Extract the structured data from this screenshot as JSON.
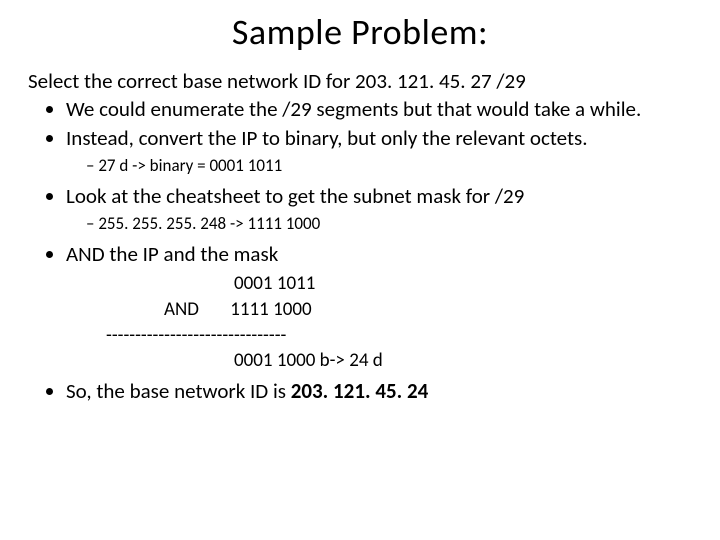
{
  "title": "Sample Problem:",
  "prompt": "Select the correct base network ID for 203. 121. 45. 27 /29",
  "bullets": {
    "b1": "We could enumerate the /29 segments but that would take a while.",
    "b2": "Instead, convert the IP to binary, but only the relevant octets.",
    "b2_sub": "27 d -> binary = 0001 1011",
    "b3": "Look at the cheatsheet to get the subnet mask for /29",
    "b3_sub": "255. 255. 255. 248 -> 1111 1000",
    "b4": "AND the IP and the mask",
    "b5_prefix": "So, the base network ID is ",
    "b5_bold": "203. 121. 45. 24"
  },
  "calc": {
    "line1": "0001 1011",
    "and_label": "AND",
    "line2": "1111 1000",
    "sep": "-------------------------------",
    "result": "0001 1000 b-> 24 d"
  },
  "style": {
    "background_color": "#ffffff",
    "text_color": "#000000",
    "title_fontsize": 36,
    "body_fontsize": 21,
    "sub_fontsize": 17,
    "calc_fontsize": 19
  }
}
